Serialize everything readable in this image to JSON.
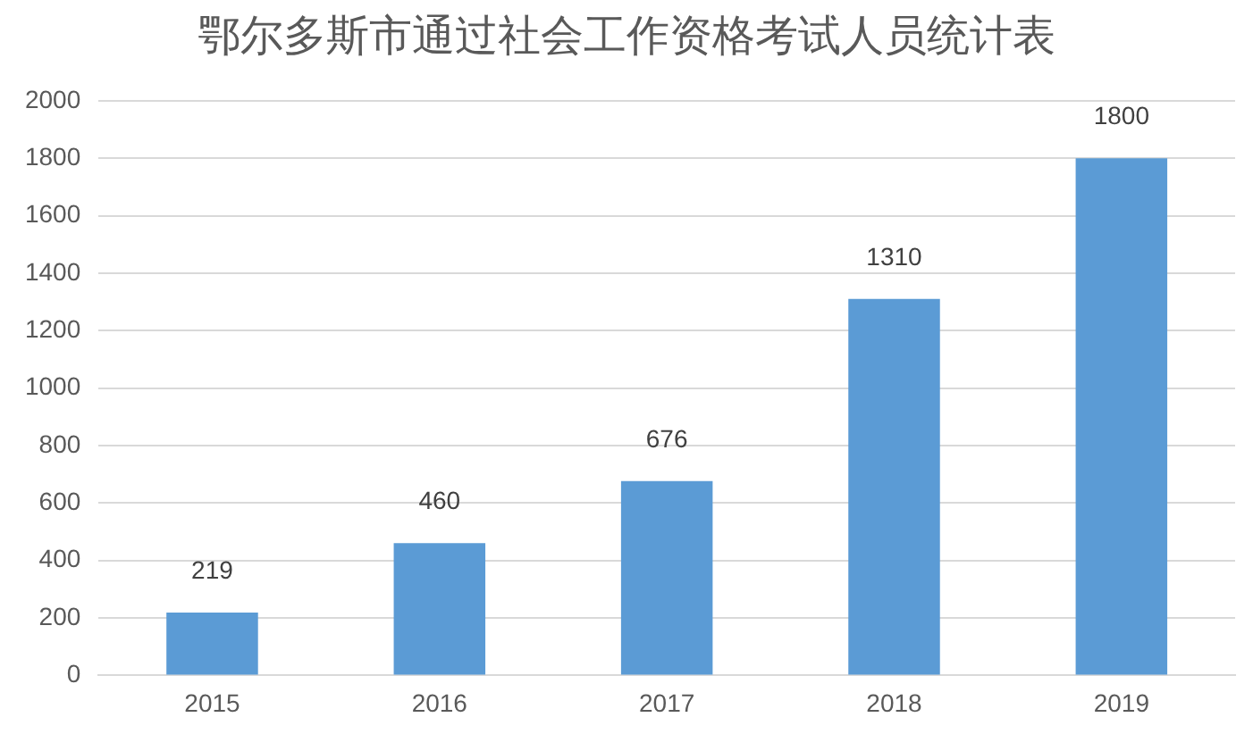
{
  "chart_data": {
    "type": "bar",
    "title": "鄂尔多斯市通过社会工作资格考试人员统计表",
    "categories": [
      "2015",
      "2016",
      "2017",
      "2018",
      "2019"
    ],
    "values": [
      219,
      460,
      676,
      1310,
      1800
    ],
    "color": "#5b9bd5",
    "ylim": [
      0,
      2000
    ],
    "yticks": [
      0,
      200,
      400,
      600,
      800,
      1000,
      1200,
      1400,
      1600,
      1800,
      2000
    ],
    "grid": "y",
    "legend": false,
    "data_labels": true
  }
}
